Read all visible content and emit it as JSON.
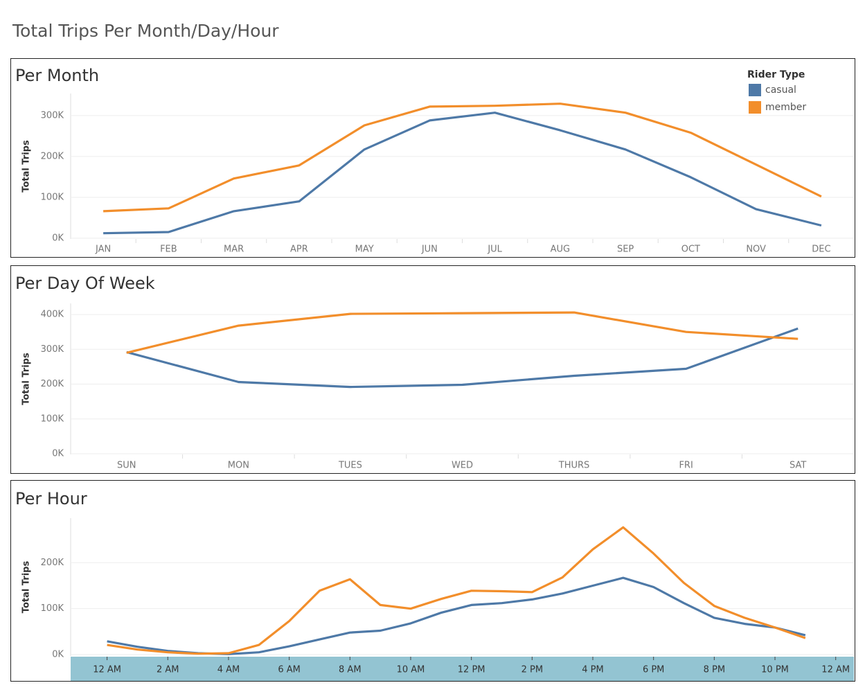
{
  "title": "Total Trips Per Month/Day/Hour",
  "chart_data": [
    {
      "type": "line",
      "title": "Per Month",
      "y_label": "Total Trips",
      "legend_title": "Rider Type",
      "legend": "top-right",
      "categories": [
        "JAN",
        "FEB",
        "MAR",
        "APR",
        "MAY",
        "JUN",
        "JUL",
        "AUG",
        "SEP",
        "OCT",
        "NOV",
        "DEC"
      ],
      "series": [
        {
          "name": "casual",
          "color": "#4e79a7",
          "values": [
            12000,
            15000,
            66000,
            90000,
            217000,
            288000,
            307000,
            264000,
            217000,
            149000,
            71000,
            31000
          ]
        },
        {
          "name": "member",
          "color": "#f28e2b",
          "values": [
            66000,
            73000,
            146000,
            178000,
            276000,
            322000,
            324000,
            329000,
            307000,
            258000,
            180000,
            102000
          ]
        }
      ],
      "ylim": [
        -2000,
        354000
      ],
      "yticks": [
        {
          "value": 0,
          "label": "0K"
        },
        {
          "value": 100000,
          "label": "100K"
        },
        {
          "value": 200000,
          "label": "200K"
        },
        {
          "value": 300000,
          "label": "300K"
        }
      ],
      "grid": true
    },
    {
      "type": "line",
      "title": "Per Day Of Week",
      "y_label": "Total Trips",
      "categories": [
        "SUN",
        "MON",
        "TUES",
        "WED",
        "THURS",
        "FRI",
        "SAT"
      ],
      "series": [
        {
          "name": "casual",
          "color": "#4e79a7",
          "values": [
            292000,
            206000,
            192000,
            198000,
            224000,
            244000,
            360000
          ]
        },
        {
          "name": "member",
          "color": "#f28e2b",
          "values": [
            290000,
            368000,
            402000,
            404000,
            406000,
            350000,
            330000
          ]
        }
      ],
      "ylim": [
        -2000,
        432000
      ],
      "yticks": [
        {
          "value": 0,
          "label": "0K"
        },
        {
          "value": 100000,
          "label": "100K"
        },
        {
          "value": 200000,
          "label": "200K"
        },
        {
          "value": 300000,
          "label": "300K"
        },
        {
          "value": 400000,
          "label": "400K"
        }
      ],
      "grid": true
    },
    {
      "type": "line",
      "title": "Per Hour",
      "y_label": "Total Trips",
      "x": [
        0,
        1,
        2,
        3,
        4,
        5,
        6,
        7,
        8,
        9,
        10,
        11,
        12,
        13,
        14,
        15,
        16,
        17,
        18,
        19,
        20,
        21,
        22,
        23
      ],
      "series": [
        {
          "name": "casual",
          "color": "#4e79a7",
          "values": [
            29000,
            17000,
            8000,
            3000,
            1000,
            5000,
            18000,
            33000,
            48000,
            52000,
            68000,
            91000,
            108000,
            112000,
            120000,
            133000,
            150000,
            167000,
            147000,
            112000,
            80000,
            67000,
            59000,
            42000
          ]
        },
        {
          "name": "member",
          "color": "#f28e2b",
          "values": [
            21000,
            11000,
            5000,
            2000,
            3000,
            21000,
            73000,
            139000,
            164000,
            108000,
            100000,
            121000,
            139000,
            138000,
            136000,
            168000,
            229000,
            277000,
            220000,
            156000,
            106000,
            80000,
            59000,
            36000
          ]
        }
      ],
      "xlim": [
        -1.2,
        24.6
      ],
      "xticks": [
        {
          "value": 0,
          "label": "12 AM"
        },
        {
          "value": 2,
          "label": "2 AM"
        },
        {
          "value": 4,
          "label": "4 AM"
        },
        {
          "value": 6,
          "label": "6 AM"
        },
        {
          "value": 8,
          "label": "8 AM"
        },
        {
          "value": 10,
          "label": "10 AM"
        },
        {
          "value": 12,
          "label": "12 PM"
        },
        {
          "value": 14,
          "label": "2 PM"
        },
        {
          "value": 16,
          "label": "4 PM"
        },
        {
          "value": 18,
          "label": "6 PM"
        },
        {
          "value": 20,
          "label": "8 PM"
        },
        {
          "value": 22,
          "label": "10 PM"
        },
        {
          "value": 24,
          "label": "12 AM"
        }
      ],
      "ylim": [
        -3000,
        297000
      ],
      "yticks": [
        {
          "value": 0,
          "label": "0K"
        },
        {
          "value": 100000,
          "label": "100K"
        },
        {
          "value": 200000,
          "label": "200K"
        }
      ],
      "grid": true
    }
  ]
}
